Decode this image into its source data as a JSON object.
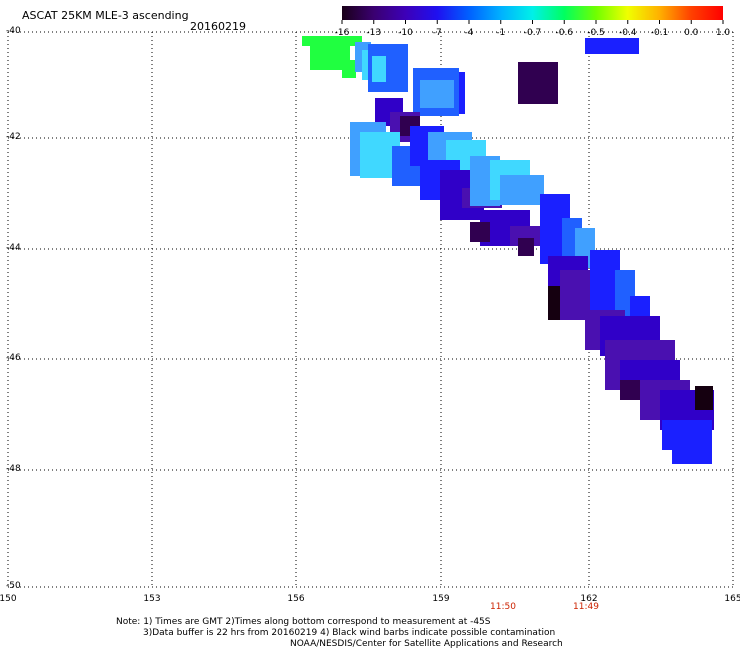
{
  "title": "ASCAT 25KM MLE-3 ascending",
  "date": "20160219",
  "colorbar": {
    "labels": [
      "-16",
      "-13",
      "-10",
      "-7",
      "-4",
      "-1",
      "-0.7",
      "-0.6",
      "-0.5",
      "-0.4",
      "-0.1",
      "0.0",
      "1.0"
    ],
    "colors": [
      "#1a0018",
      "#3a0070",
      "#3d00b8",
      "#1f10f0",
      "#0060ff",
      "#00b0ff",
      "#00f0e8",
      "#00ff60",
      "#70ff00",
      "#f0ff00",
      "#ffb000",
      "#ff4000",
      "#ff0000"
    ]
  },
  "axes": {
    "lat_labels": [
      "-40",
      "-42",
      "-44",
      "-46",
      "-48",
      "-50"
    ],
    "lon_labels": [
      "150",
      "153",
      "156",
      "159",
      "162",
      "165"
    ]
  },
  "times": [
    "11:50",
    "11:49"
  ],
  "notes": {
    "line1": "Note: 1) Times are GMT 2)Times along bottom correspond to measurement at -45S",
    "line2": "3)Data buffer is 22 hrs from 20160219 4) Black wind barbs indicate possible contamination",
    "line3": "NOAA/NESDIS/Center for Satellite Applications and Research"
  },
  "swath_colors": {
    "darkpurple": "#300050",
    "purple": "#4a10b0",
    "indigo": "#3000c8",
    "blue": "#1a20ff",
    "midblue": "#2060ff",
    "lightblue": "#40a0ff",
    "cyan": "#40d8ff",
    "green": "#20ff40",
    "black": "#150010"
  }
}
